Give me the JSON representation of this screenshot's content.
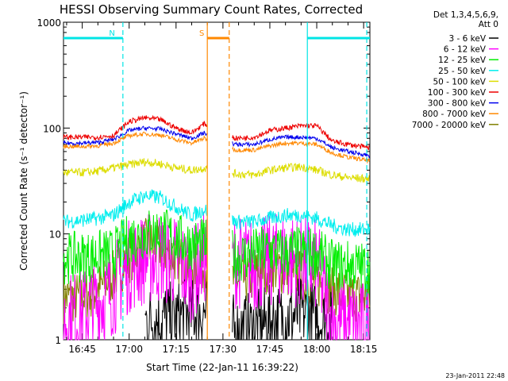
{
  "chart_data": {
    "type": "line",
    "title": "HESSI Observing Summary Count Rates, Corrected",
    "xlabel": "Start Time (22-Jan-11 16:39:22)",
    "ylabel": "Corrected Count Rate (s⁻¹ detector⁻¹)",
    "y_scale": "log",
    "ylim": [
      1,
      1000
    ],
    "xlim": [
      "16:39",
      "18:17"
    ],
    "x_ticks": [
      "16:45",
      "17:00",
      "17:15",
      "17:30",
      "17:45",
      "18:00",
      "18:15"
    ],
    "y_ticks": [
      "1",
      "10",
      "100",
      "1000"
    ],
    "legend_title": [
      "Det 1,3,4,5,6,9,",
      "Att 0"
    ],
    "legend_position": "right",
    "timestamp": "23-Jan-2011 22:48",
    "flags": [
      {
        "label": "N",
        "start": "16:39",
        "end": "16:58",
        "color": "#00e5e5"
      },
      {
        "label": "S",
        "start": "17:25",
        "end": "17:32",
        "color": "#ff8800"
      },
      {
        "label": "",
        "start": "17:57",
        "end": "18:17",
        "color": "#00e5e5"
      }
    ],
    "event_lines": [
      {
        "time": "16:58",
        "color": "#00e5e5",
        "dashed": true
      },
      {
        "time": "17:25",
        "color": "#ff8800",
        "dashed": false
      },
      {
        "time": "17:32",
        "color": "#ff8800",
        "dashed": true
      },
      {
        "time": "17:57",
        "color": "#00e5e5",
        "dashed": false
      },
      {
        "time": "18:16",
        "color": "#00e5e5",
        "dashed": true
      }
    ],
    "x": [
      "16:39",
      "16:45",
      "16:50",
      "16:55",
      "17:00",
      "17:05",
      "17:10",
      "17:15",
      "17:20",
      "17:24",
      "17:34",
      "17:40",
      "17:45",
      "17:50",
      "17:55",
      "18:00",
      "18:05",
      "18:10",
      "18:17"
    ],
    "gap": [
      "17:25",
      "17:33"
    ],
    "series": [
      {
        "name": "3 - 6 keV",
        "color": "#000000",
        "values": [
          null,
          null,
          null,
          null,
          null,
          1.5,
          1.6,
          1.6,
          1.8,
          1.8,
          1.2,
          1.3,
          1.5,
          1.6,
          1.8,
          1.6,
          1.3,
          null,
          null
        ]
      },
      {
        "name": "6 - 12 keV",
        "color": "#ff00ff",
        "values": [
          1.6,
          1.7,
          2.2,
          3.0,
          5.0,
          5.8,
          6.0,
          5.5,
          4.0,
          6.0,
          5.5,
          5.0,
          5.5,
          6.0,
          5.5,
          5.0,
          1.5,
          1.4,
          1.3
        ]
      },
      {
        "name": "12 - 25 keV",
        "color": "#00ee00",
        "values": [
          5.9,
          6.0,
          6.2,
          6.5,
          9.0,
          10.0,
          10.5,
          9.0,
          8.0,
          8.0,
          6.0,
          6.5,
          7.0,
          6.5,
          6.8,
          6.5,
          5.0,
          5.0,
          4.8
        ]
      },
      {
        "name": "25 - 50 keV",
        "color": "#00eeee",
        "values": [
          13,
          13.5,
          14,
          15,
          20,
          23,
          22,
          18,
          15,
          17,
          13,
          13,
          14,
          15,
          15,
          14,
          12,
          11,
          11
        ]
      },
      {
        "name": "50 - 100 keV",
        "color": "#dddd00",
        "values": [
          38,
          38,
          39,
          42,
          45,
          48,
          46,
          42,
          40,
          42,
          37,
          36,
          40,
          42,
          43,
          40,
          36,
          34,
          33
        ]
      },
      {
        "name": "100 - 300 keV",
        "color": "#ee0000",
        "values": [
          82,
          82,
          82,
          85,
          115,
          125,
          120,
          100,
          90,
          110,
          80,
          82,
          95,
          100,
          105,
          105,
          75,
          70,
          65
        ]
      },
      {
        "name": "300 - 800 keV",
        "color": "#0000ee",
        "values": [
          72,
          72,
          73,
          78,
          95,
          100,
          98,
          88,
          80,
          90,
          70,
          70,
          78,
          82,
          82,
          80,
          65,
          60,
          55
        ]
      },
      {
        "name": "800 - 7000 keV",
        "color": "#ff8800",
        "values": [
          67,
          67,
          68,
          72,
          85,
          88,
          86,
          78,
          72,
          80,
          62,
          62,
          68,
          72,
          72,
          70,
          58,
          53,
          49
        ]
      },
      {
        "name": "7000 - 20000 keV",
        "color": "#808000",
        "values": [
          2.5,
          2.5,
          3.0,
          4.0,
          6.0,
          8.0,
          7.5,
          6.0,
          5.0,
          5.0,
          3.5,
          4.0,
          5.0,
          4.5,
          4.0,
          3.5,
          3.0,
          2.6,
          2.5
        ]
      }
    ]
  }
}
